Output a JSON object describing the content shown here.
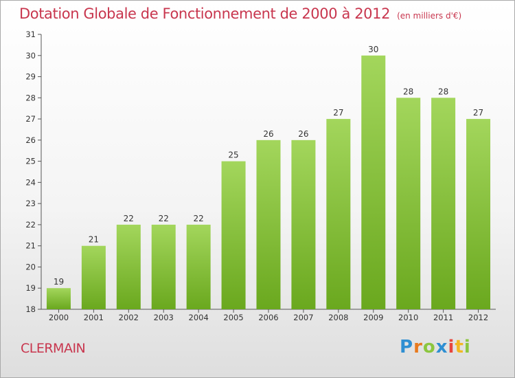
{
  "chart_data": {
    "type": "bar",
    "title": "Dotation Globale de Fonctionnement de 2000 à 2012",
    "subtitle": "(en milliers d'€)",
    "categories": [
      "2000",
      "2001",
      "2002",
      "2003",
      "2004",
      "2005",
      "2006",
      "2007",
      "2008",
      "2009",
      "2010",
      "2011",
      "2012"
    ],
    "values": [
      19,
      21,
      22,
      22,
      22,
      25,
      26,
      26,
      27,
      30,
      28,
      28,
      27
    ],
    "ylim": [
      18,
      31
    ],
    "yticks": [
      18,
      19,
      20,
      21,
      22,
      23,
      24,
      25,
      26,
      27,
      28,
      29,
      30,
      31
    ],
    "grid": false,
    "bar_color": "#8cc63f"
  },
  "commune": "CLERMAIN",
  "logo": {
    "text": "Proxiti"
  }
}
